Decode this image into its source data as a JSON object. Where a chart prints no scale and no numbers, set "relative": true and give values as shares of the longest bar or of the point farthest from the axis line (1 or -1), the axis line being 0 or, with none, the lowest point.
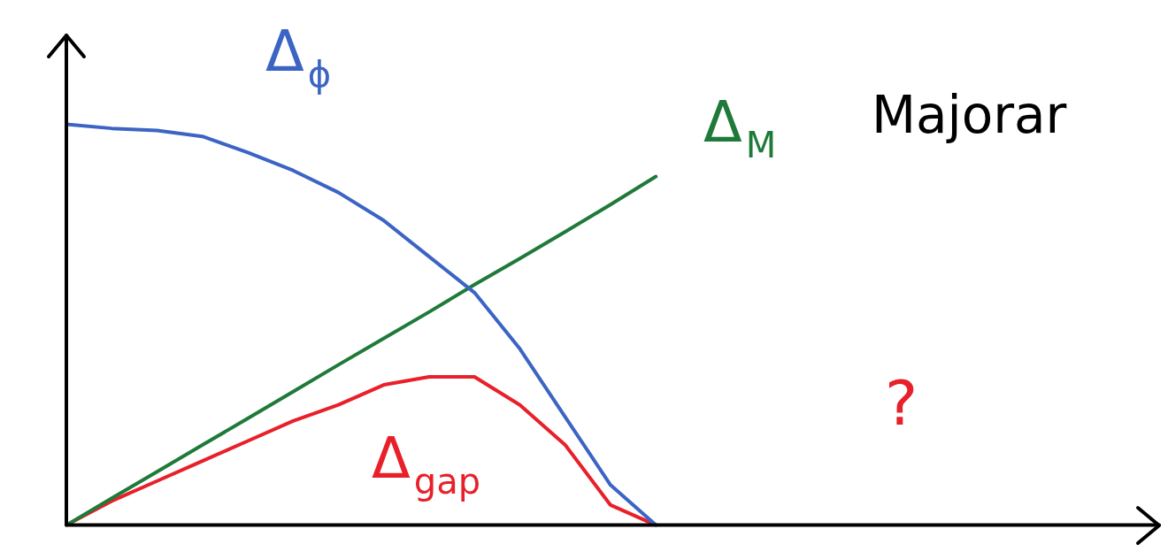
{
  "chart_data": {
    "type": "line",
    "relative": true,
    "categories": [
      null,
      null,
      null,
      null,
      null,
      null,
      null,
      null,
      null,
      null,
      null,
      null,
      null,
      null,
      null,
      null,
      null,
      null,
      null,
      null,
      null,
      null,
      null,
      null,
      null
    ],
    "series": [
      {
        "name": "Δ$_{ϕ}$",
        "color": "#3b64c4",
        "values": [
          1.0,
          0.99,
          0.985,
          0.97,
          0.93,
          0.885,
          0.83,
          0.76,
          0.67,
          0.58,
          0.44,
          0.27,
          0.1,
          0,
          null,
          null,
          null,
          null,
          null,
          null,
          null,
          null,
          null,
          null,
          null
        ]
      },
      {
        "name": "Δ$_{M}$",
        "color": "#1f7a3a",
        "values": [
          0,
          0.067,
          0.133,
          0.2,
          0.266,
          0.333,
          0.4,
          0.466,
          0.532,
          0.6,
          0.665,
          0.732,
          0.8,
          0.87,
          null,
          null,
          null,
          null,
          null,
          null,
          null,
          null,
          null,
          null,
          null
        ]
      },
      {
        "name": "Δ$_{gap}$",
        "color": "#e8202a",
        "values": [
          0,
          0.06,
          0.11,
          0.16,
          0.21,
          0.26,
          0.3,
          0.35,
          0.37,
          0.37,
          0.3,
          0.2,
          0.05,
          0,
          null,
          null,
          null,
          null,
          null,
          null,
          null,
          null,
          null,
          null,
          null
        ]
      }
    ],
    "annotations": [
      "Majorar",
      "?"
    ],
    "grid": false,
    "legend": false,
    "marker": "none",
    "line_style": "solid"
  }
}
